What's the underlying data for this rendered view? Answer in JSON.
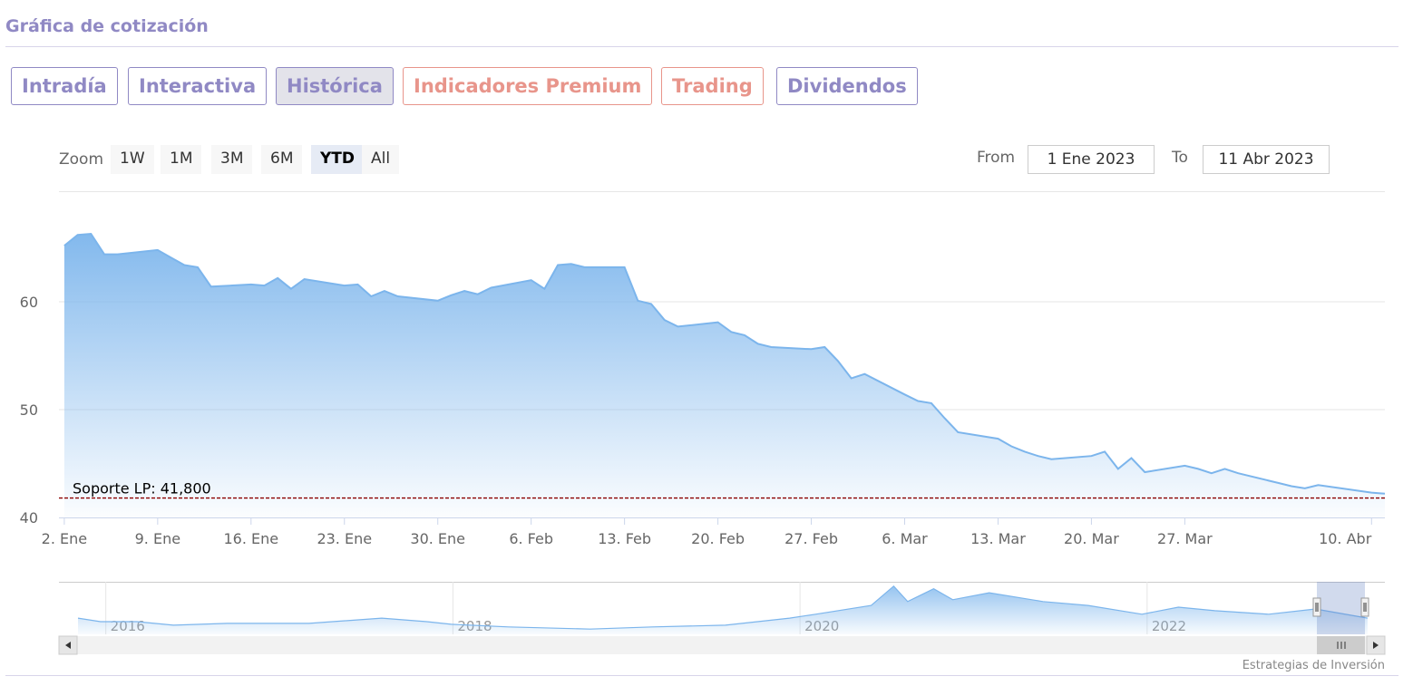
{
  "header": {
    "title": "Gráfica de cotización"
  },
  "tabs": [
    "Intradía",
    "Interactiva",
    "Histórica",
    "Indicadores Premium",
    "Trading",
    "Dividendos"
  ],
  "zoom": {
    "label": "Zoom",
    "buttons": [
      "1W",
      "1M",
      "3M",
      "6M",
      "YTD",
      "All"
    ]
  },
  "range": {
    "from_label": "From",
    "from": "1 Ene 2023",
    "to_label": "To",
    "to": "11 Abr 2023"
  },
  "credit": "Estrategias de Inversión",
  "chart_data": {
    "type": "area",
    "color": "#7cb5ec",
    "x": [
      2,
      3,
      4,
      5,
      6,
      9,
      10,
      11,
      12,
      13,
      16,
      17,
      18,
      19,
      20,
      23,
      24,
      25,
      26,
      27,
      30,
      31,
      32,
      33,
      34,
      37,
      38,
      39,
      40,
      41,
      44,
      45,
      46,
      47,
      48,
      51,
      52,
      53,
      54,
      55,
      58,
      59,
      60,
      61,
      62,
      65,
      66,
      67,
      68,
      69,
      72,
      73,
      74,
      75,
      76,
      79,
      80,
      81,
      82,
      83,
      86,
      87,
      88,
      89,
      90,
      93,
      94,
      95,
      96,
      100,
      101
    ],
    "values": [
      65.2,
      66.2,
      66.3,
      64.4,
      64.4,
      64.8,
      64.1,
      63.4,
      63.2,
      61.4,
      61.6,
      61.5,
      62.2,
      61.2,
      62.1,
      61.5,
      61.6,
      60.5,
      61.0,
      60.5,
      60.1,
      60.6,
      61.0,
      60.7,
      61.3,
      62.0,
      61.2,
      63.4,
      63.5,
      63.2,
      63.2,
      60.1,
      59.8,
      58.3,
      57.7,
      58.1,
      57.2,
      56.9,
      56.1,
      55.8,
      55.6,
      55.8,
      54.5,
      52.9,
      53.3,
      51.4,
      50.8,
      50.6,
      49.2,
      47.9,
      47.3,
      46.6,
      46.1,
      45.7,
      45.4,
      45.7,
      46.1,
      44.5,
      45.5,
      44.2,
      44.8,
      44.5,
      44.1,
      44.5,
      44.1,
      43.2,
      42.9,
      42.7,
      43.0,
      42.3,
      42.2
    ],
    "xlim": [
      1.6,
      101
    ],
    "xticks": [
      {
        "value": 2,
        "label": "2. Ene"
      },
      {
        "value": 9,
        "label": "9. Ene"
      },
      {
        "value": 16,
        "label": "16. Ene"
      },
      {
        "value": 23,
        "label": "23. Ene"
      },
      {
        "value": 30,
        "label": "30. Ene"
      },
      {
        "value": 37,
        "label": "6. Feb"
      },
      {
        "value": 44,
        "label": "13. Feb"
      },
      {
        "value": 51,
        "label": "20. Feb"
      },
      {
        "value": 58,
        "label": "27. Feb"
      },
      {
        "value": 65,
        "label": "6. Mar"
      },
      {
        "value": 72,
        "label": "13. Mar"
      },
      {
        "value": 79,
        "label": "20. Mar"
      },
      {
        "value": 86,
        "label": "27. Mar"
      },
      {
        "value": 100,
        "label": "10. Abr"
      }
    ],
    "ylim": [
      40,
      70.25
    ],
    "yticks": [
      40,
      50,
      60
    ],
    "grid": true,
    "plot_line": {
      "value": 41.8,
      "label": "Soporte LP: 41,800",
      "color": "#8b0000"
    },
    "navigator": {
      "x": [
        2015.84,
        2015.97,
        2016.18,
        2016.39,
        2016.7,
        2017.17,
        2017.59,
        2017.85,
        2017.99,
        2018.32,
        2018.79,
        2019.15,
        2019.57,
        2019.94,
        2020.09,
        2020.41,
        2020.54,
        2020.62,
        2020.77,
        2020.88,
        2021.09,
        2021.4,
        2021.66,
        2021.97,
        2022.18,
        2022.39,
        2022.7,
        2022.97,
        2023.27
      ],
      "values": [
        37,
        29,
        29,
        21,
        25,
        25,
        37,
        29,
        23,
        17,
        12,
        17,
        21,
        37,
        46,
        66,
        110,
        75,
        104,
        79,
        95,
        75,
        66,
        46,
        62,
        54,
        46,
        58,
        37
      ],
      "xlim": [
        2015.73,
        2023.37
      ],
      "ylim": [
        0,
        120
      ],
      "xticks": [
        2016,
        2018,
        2020,
        2022
      ]
    }
  }
}
